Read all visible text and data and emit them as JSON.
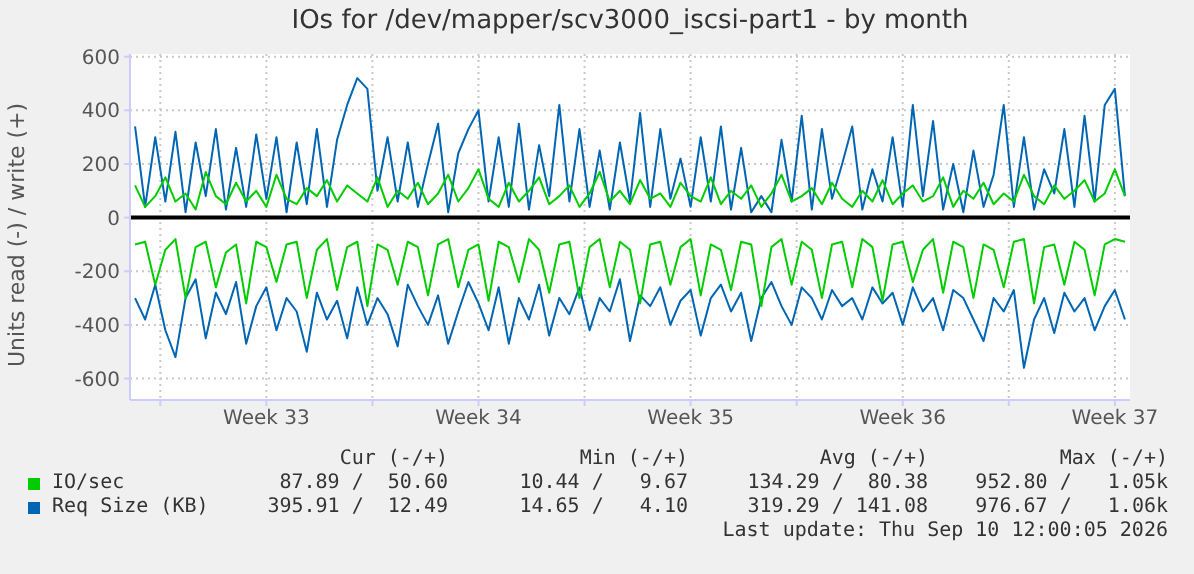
{
  "chart_data": {
    "type": "line",
    "title": "IOs for /dev/mapper/scv3000_iscsi-part1 - by month",
    "ylabel": "Units read (-) / write (+)",
    "x": [
      "2026-08-09T04:00",
      "2026-08-09T12:00",
      "2026-08-09T20:00",
      "2026-08-10T04:00",
      "2026-08-10T12:00",
      "2026-08-10T20:00",
      "2026-08-11T04:00",
      "2026-08-11T12:00",
      "2026-08-11T20:00",
      "2026-08-12T04:00",
      "2026-08-12T12:00",
      "2026-08-12T20:00",
      "2026-08-13T04:00",
      "2026-08-13T12:00",
      "2026-08-13T20:00",
      "2026-08-14T04:00",
      "2026-08-14T12:00",
      "2026-08-14T20:00",
      "2026-08-15T04:00",
      "2026-08-15T12:00",
      "2026-08-15T20:00",
      "2026-08-16T04:00",
      "2026-08-16T12:00",
      "2026-08-16T20:00",
      "2026-08-17T04:00",
      "2026-08-17T12:00",
      "2026-08-17T20:00",
      "2026-08-18T04:00",
      "2026-08-18T12:00",
      "2026-08-18T20:00",
      "2026-08-19T04:00",
      "2026-08-19T12:00",
      "2026-08-19T20:00",
      "2026-08-20T04:00",
      "2026-08-20T12:00",
      "2026-08-20T20:00",
      "2026-08-21T04:00",
      "2026-08-21T12:00",
      "2026-08-21T20:00",
      "2026-08-22T04:00",
      "2026-08-22T12:00",
      "2026-08-22T20:00",
      "2026-08-23T04:00",
      "2026-08-23T12:00",
      "2026-08-23T20:00",
      "2026-08-24T04:00",
      "2026-08-24T12:00",
      "2026-08-24T20:00",
      "2026-08-25T04:00",
      "2026-08-25T12:00",
      "2026-08-25T20:00",
      "2026-08-26T04:00",
      "2026-08-26T12:00",
      "2026-08-26T20:00",
      "2026-08-27T04:00",
      "2026-08-27T12:00",
      "2026-08-27T20:00",
      "2026-08-28T04:00",
      "2026-08-28T12:00",
      "2026-08-28T20:00",
      "2026-08-29T04:00",
      "2026-08-29T12:00",
      "2026-08-29T20:00",
      "2026-08-30T04:00",
      "2026-08-30T12:00",
      "2026-08-30T20:00",
      "2026-08-31T04:00",
      "2026-08-31T12:00",
      "2026-08-31T20:00",
      "2026-09-01T04:00",
      "2026-09-01T12:00",
      "2026-09-01T20:00",
      "2026-09-02T04:00",
      "2026-09-02T12:00",
      "2026-09-02T20:00",
      "2026-09-03T04:00",
      "2026-09-03T12:00",
      "2026-09-03T20:00",
      "2026-09-04T04:00",
      "2026-09-04T12:00",
      "2026-09-04T20:00",
      "2026-09-05T04:00",
      "2026-09-05T12:00",
      "2026-09-05T20:00",
      "2026-09-06T04:00",
      "2026-09-06T12:00",
      "2026-09-06T20:00",
      "2026-09-07T04:00",
      "2026-09-07T12:00",
      "2026-09-07T20:00",
      "2026-09-08T04:00",
      "2026-09-08T12:00",
      "2026-09-08T20:00",
      "2026-09-09T04:00",
      "2026-09-09T12:00",
      "2026-09-09T20:00",
      "2026-09-10T04:00",
      "2026-09-10T12:00",
      "2026-09-10T20:00"
    ],
    "xlim": [
      "2026-08-09T00:00",
      "2026-09-11T00:00"
    ],
    "xticks": [
      {
        "value": "2026-08-10T00:00",
        "label": null
      },
      {
        "value": "2026-08-13T12:00",
        "label": "Week 33"
      },
      {
        "value": "2026-08-17T00:00",
        "label": null
      },
      {
        "value": "2026-08-20T12:00",
        "label": "Week 34"
      },
      {
        "value": "2026-08-24T00:00",
        "label": null
      },
      {
        "value": "2026-08-27T12:00",
        "label": "Week 35"
      },
      {
        "value": "2026-08-31T00:00",
        "label": null
      },
      {
        "value": "2026-09-03T12:00",
        "label": "Week 36"
      },
      {
        "value": "2026-09-07T00:00",
        "label": null
      },
      {
        "value": "2026-09-10T12:00",
        "label": "Week 37"
      }
    ],
    "ylim": [
      -680,
      610
    ],
    "yticks": [
      -600,
      -400,
      -200,
      0,
      200,
      400,
      600
    ],
    "series": [
      {
        "name": "IO/sec",
        "color": "#00cc00",
        "values": [
          120,
          40,
          80,
          150,
          60,
          90,
          30,
          170,
          80,
          50,
          130,
          60,
          100,
          40,
          160,
          70,
          50,
          110,
          80,
          140,
          60,
          120,
          90,
          60,
          150,
          40,
          100,
          70,
          130,
          50,
          90,
          160,
          60,
          110,
          180,
          70,
          40,
          130,
          60,
          100,
          150,
          50,
          80,
          120,
          40,
          90,
          170,
          60,
          100,
          50,
          140,
          70,
          90,
          40,
          130,
          80,
          60,
          150,
          50,
          100,
          70,
          120,
          40,
          90,
          160,
          60,
          80,
          110,
          50,
          130,
          70,
          40,
          100,
          60,
          140,
          50,
          90,
          120,
          60,
          80,
          150,
          40,
          100,
          70,
          130,
          50,
          90,
          60,
          160,
          80,
          50,
          120,
          70,
          100,
          140,
          60,
          90,
          180,
          80
        ]
      },
      {
        "color": "#00cc00",
        "values": [
          -100,
          -90,
          -250,
          -120,
          -80,
          -300,
          -110,
          -90,
          -260,
          -130,
          -100,
          -320,
          -90,
          -110,
          -240,
          -100,
          -90,
          -300,
          -120,
          -80,
          -270,
          -110,
          -90,
          -330,
          -100,
          -120,
          -250,
          -90,
          -110,
          -290,
          -100,
          -80,
          -260,
          -120,
          -100,
          -310,
          -90,
          -110,
          -240,
          -80,
          -120,
          -280,
          -100,
          -90,
          -300,
          -110,
          -80,
          -260,
          -90,
          -120,
          -320,
          -100,
          -90,
          -250,
          -110,
          -80,
          -290,
          -100,
          -120,
          -270,
          -90,
          -100,
          -330,
          -110,
          -80,
          -250,
          -90,
          -120,
          -300,
          -100,
          -90,
          -260,
          -80,
          -110,
          -310,
          -100,
          -90,
          -240,
          -120,
          -80,
          -280,
          -90,
          -110,
          -300,
          -100,
          -120,
          -260,
          -90,
          -80,
          -320,
          -110,
          -100,
          -250,
          -90,
          -120,
          -290,
          -100,
          -80,
          -90
        ]
      },
      {
        "name": "Req Size (KB)",
        "color": "#0066b3",
        "values": [
          340,
          40,
          300,
          60,
          320,
          20,
          280,
          80,
          330,
          30,
          260,
          40,
          310,
          70,
          300,
          20,
          280,
          50,
          330,
          40,
          290,
          420,
          520,
          480,
          100,
          300,
          60,
          280,
          40,
          200,
          350,
          20,
          240,
          330,
          400,
          60,
          300,
          40,
          350,
          30,
          270,
          80,
          420,
          60,
          330,
          40,
          250,
          30,
          280,
          60,
          390,
          40,
          330,
          70,
          220,
          40,
          300,
          60,
          340,
          30,
          260,
          20,
          80,
          20,
          290,
          60,
          380,
          30,
          330,
          70,
          200,
          340,
          30,
          180,
          60,
          300,
          40,
          420,
          80,
          360,
          30,
          200,
          20,
          250,
          40,
          160,
          420,
          40,
          300,
          30,
          180,
          90,
          330,
          40,
          380,
          60,
          420,
          480,
          80
        ]
      },
      {
        "color": "#0066b3",
        "values": [
          -300,
          -380,
          -250,
          -420,
          -520,
          -300,
          -230,
          -450,
          -280,
          -360,
          -240,
          -470,
          -330,
          -260,
          -420,
          -300,
          -350,
          -500,
          -280,
          -380,
          -310,
          -450,
          -260,
          -400,
          -300,
          -360,
          -480,
          -250,
          -330,
          -400,
          -290,
          -470,
          -350,
          -240,
          -320,
          -420,
          -260,
          -470,
          -300,
          -380,
          -250,
          -440,
          -300,
          -360,
          -260,
          -420,
          -300,
          -350,
          -230,
          -460,
          -290,
          -330,
          -260,
          -400,
          -310,
          -270,
          -440,
          -300,
          -250,
          -350,
          -280,
          -460,
          -300,
          -240,
          -330,
          -400,
          -260,
          -300,
          -380,
          -270,
          -330,
          -300,
          -380,
          -260,
          -320,
          -280,
          -400,
          -260,
          -350,
          -300,
          -420,
          -270,
          -300,
          -380,
          -460,
          -300,
          -350,
          -270,
          -560,
          -380,
          -300,
          -430,
          -280,
          -350,
          -300,
          -420,
          -330,
          -270,
          -380
        ]
      }
    ],
    "ref_lines": [
      {
        "axis": "y",
        "value": 0,
        "color": "#000000"
      }
    ],
    "grid": true,
    "legend": "bottom",
    "marker": "none",
    "line_style": "solid",
    "annotations": [
      "Cur (-/+)",
      "Min (-/+)",
      "Avg (-/+)",
      "Max (-/+)",
      "87.89 /  50.60",
      "10.44 /   9.67",
      "134.29 /  80.38",
      "952.80 /   1.05k",
      "395.91 /  12.49",
      "14.65 /   4.10",
      "319.29 / 141.08",
      "976.67 /   1.06k",
      "Last update: Thu Sep 10 12:00:05 2026"
    ]
  }
}
